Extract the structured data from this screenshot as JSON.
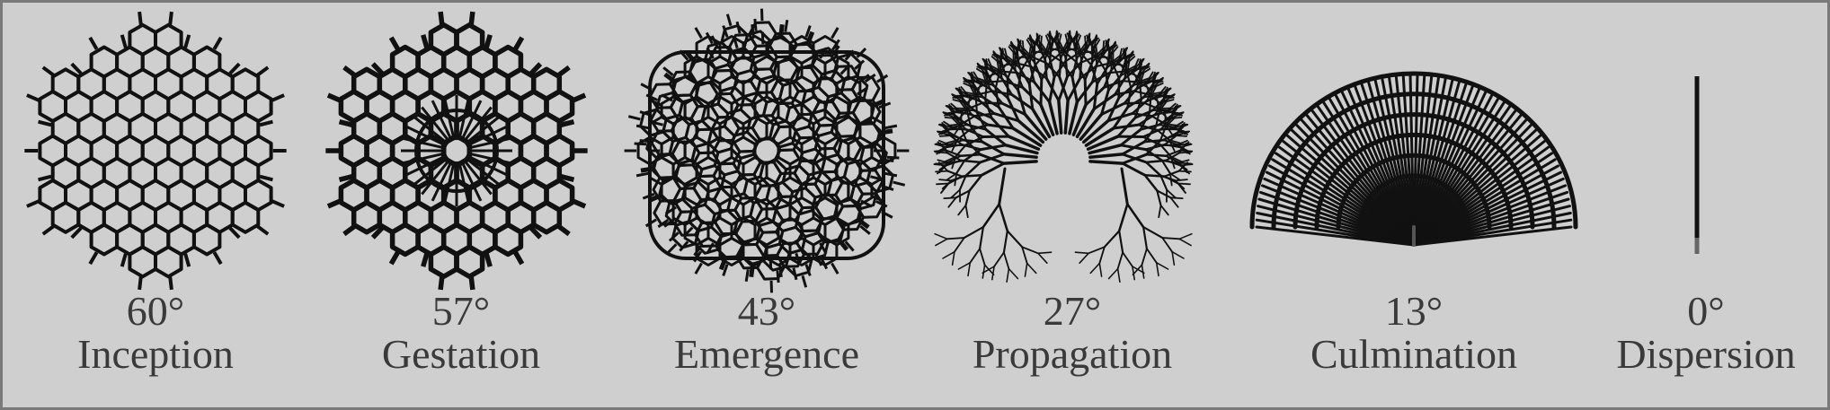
{
  "stages": [
    {
      "angle": "60°",
      "name": "Inception"
    },
    {
      "angle": "57°",
      "name": "Gestation"
    },
    {
      "angle": "43°",
      "name": "Emergence"
    },
    {
      "angle": "27°",
      "name": "Propagation"
    },
    {
      "angle": "13°",
      "name": "Culmination"
    },
    {
      "angle": "0°",
      "name": "Dispersion"
    }
  ],
  "colors": {
    "background": "#cfcfcf",
    "stroke": "#111111",
    "text": "#3a3a3a",
    "border": "#7a7a7a"
  }
}
